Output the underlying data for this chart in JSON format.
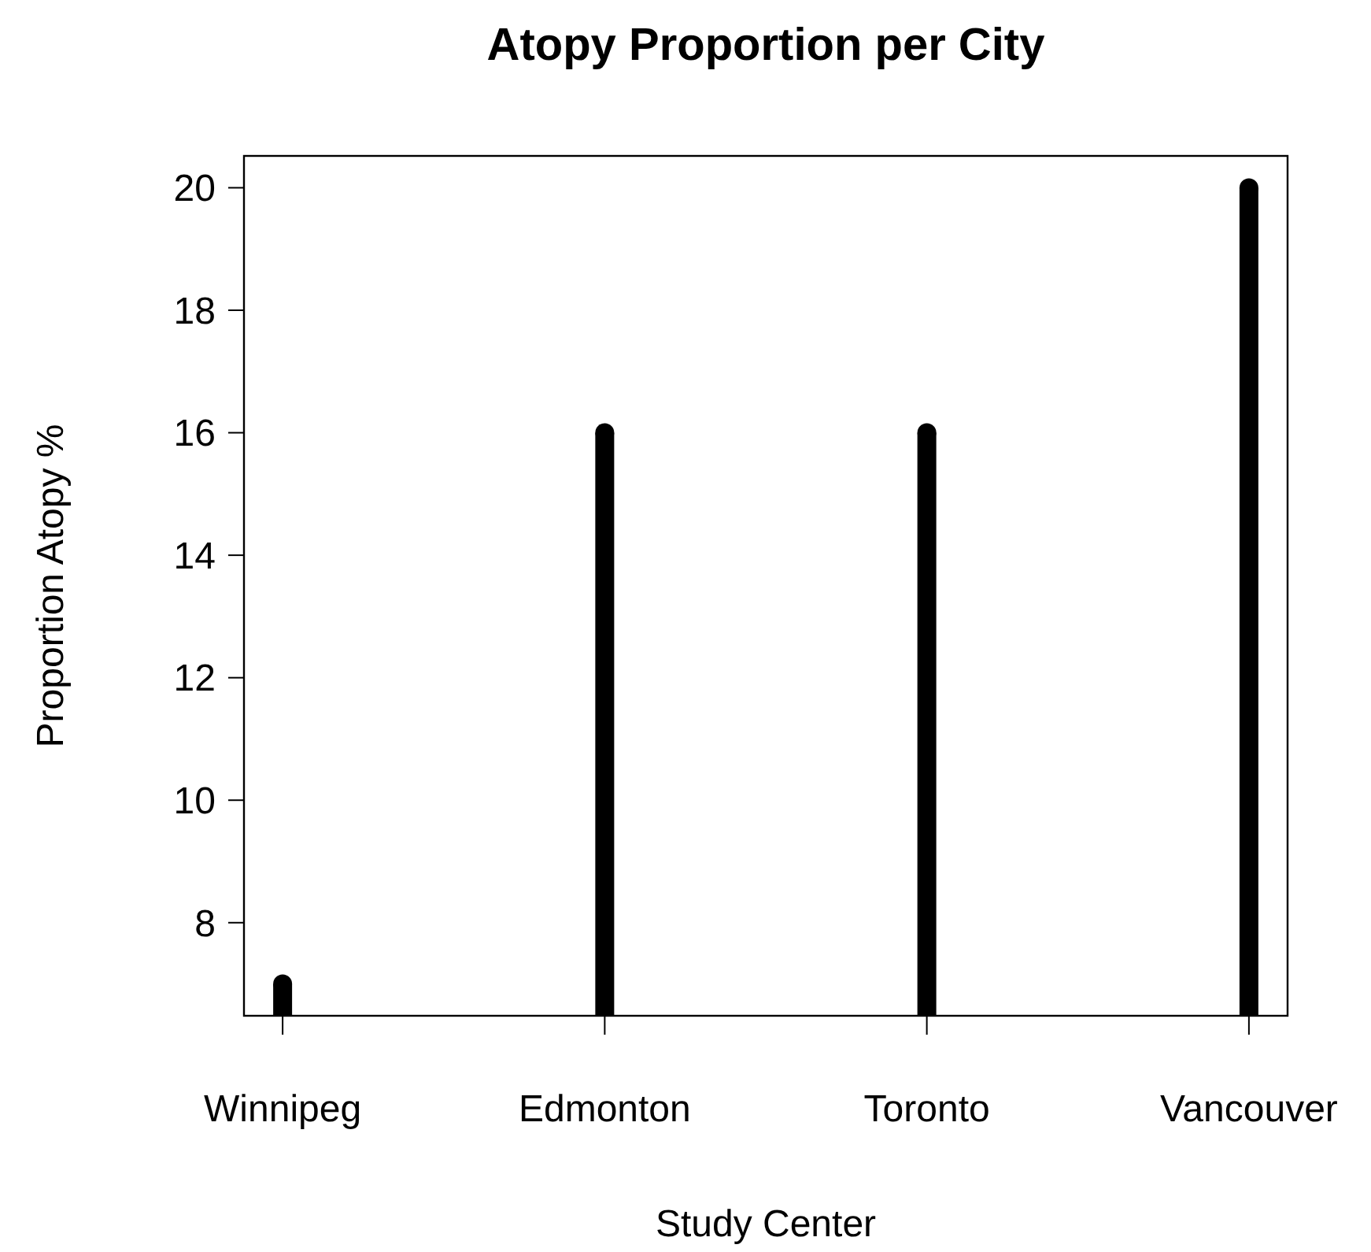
{
  "chart_data": {
    "type": "lollipop",
    "marker": "circle",
    "title": "Atopy Proportion per City",
    "xlabel": "Study Center",
    "ylabel": "Proportion Atopy %",
    "categories": [
      "Winnipeg",
      "Edmonton",
      "Toronto",
      "Vancouver"
    ],
    "values": [
      7,
      16,
      16,
      20
    ],
    "color": "#000000",
    "ylim": [
      6.48,
      20.52
    ],
    "yticks": [
      8,
      10,
      12,
      14,
      16,
      18,
      20
    ]
  }
}
